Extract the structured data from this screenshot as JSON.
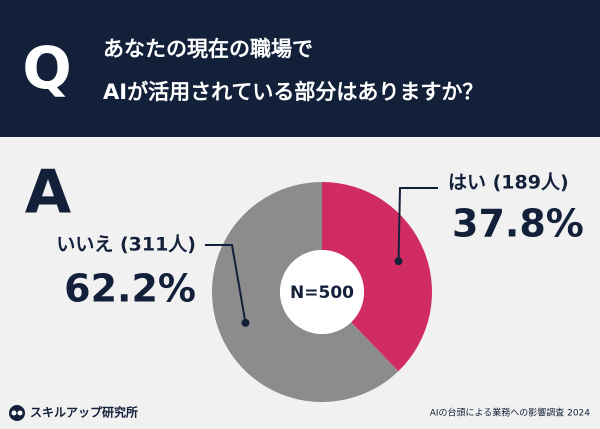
{
  "header": {
    "mark": "Q",
    "title": [
      "あなたの現在の職場で",
      "AIが活用されている部分はありますか？"
    ]
  },
  "answer_mark": "A",
  "chart_data": {
    "type": "pie",
    "categories": [
      "はい (189人)",
      "いいえ (311人)"
    ],
    "values": [
      37.8,
      62.2
    ],
    "value_labels": [
      "37.8%",
      "62.2%"
    ],
    "colors": [
      "#d12c62",
      "#8c8c8c"
    ],
    "donut": true,
    "annotations": [
      "N=500"
    ]
  },
  "footer": {
    "brand": "スキルアップ研究所",
    "source": "AIの台頭による業務への影響調査 2024"
  }
}
